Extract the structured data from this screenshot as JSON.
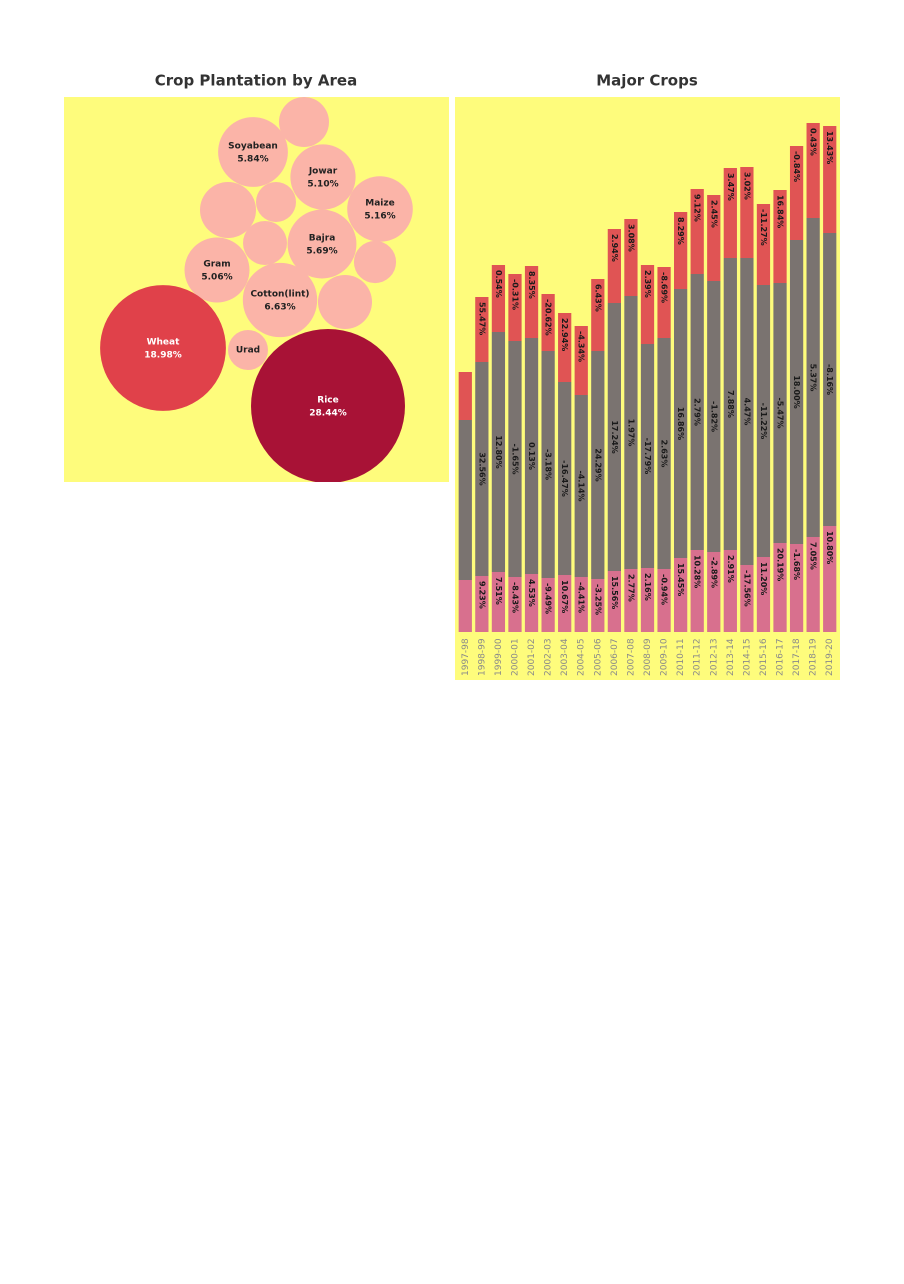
{
  "chart_data": [
    {
      "type": "bubble",
      "title": "Crop Plantation by Area",
      "categories": [
        "Soyabean",
        "Jowar",
        "Maize",
        "Bajra",
        "Gram",
        "Cotton(lint)",
        "Wheat",
        "Rice",
        "Urad",
        null,
        null,
        null,
        null,
        null,
        null
      ],
      "values": [
        5.84,
        5.1,
        5.16,
        5.69,
        5.06,
        6.63,
        18.98,
        28.44,
        1.92,
        3.0,
        3.76,
        1.92,
        2.32,
        3.5,
        2.13
      ],
      "value_labels": [
        "5.84%",
        "5.10%",
        "5.16%",
        "5.69%",
        "5.06%",
        "6.63%",
        "18.98%",
        "28.44%",
        null,
        null,
        null,
        null,
        null,
        null,
        null
      ],
      "colors": [
        "#fbb4a8",
        "#fbb4a8",
        "#fbb4a8",
        "#fbb4a8",
        "#fbb4a8",
        "#fbb4a8",
        "#e0414a",
        "#a81236",
        "#fbb4a8",
        "#fbb4a8",
        "#fbb4a8",
        "#fbb4a8",
        "#fbb4a8",
        "#fbb4a8",
        "#fbb4a8"
      ],
      "background": "#fefc7c"
    },
    {
      "type": "stacked-bar",
      "title": "Major Crops",
      "categories": [
        "1997-98",
        "1998-99",
        "1999-00",
        "2000-01",
        "2001-02",
        "2002-03",
        "2003-04",
        "2004-05",
        "2005-06",
        "2006-07",
        "2007-08",
        "2008-09",
        "2009-10",
        "2010-11",
        "2011-12",
        "2012-13",
        "2013-14",
        "2014-15",
        "2015-16",
        "2016-17",
        "2017-18",
        "2018-19",
        "2019-20"
      ],
      "series": [
        {
          "color": "#d8708e",
          "values": [
            52,
            56,
            60,
            55,
            58,
            54,
            57,
            55,
            53,
            61,
            63,
            64,
            63,
            74,
            82,
            80,
            82,
            67,
            75,
            89,
            88,
            95,
            106
          ],
          "labels": [
            null,
            "9.23%",
            "7.51%",
            "-8.43%",
            "4.53%",
            "-9.49%",
            "10.67%",
            "-4.41%",
            "-3.25%",
            "15.56%",
            "2.77%",
            "2.16%",
            "-0.94%",
            "15.45%",
            "10.28%",
            "-2.89%",
            "2.91%",
            "-17.56%",
            "11.20%",
            "20.19%",
            "-1.68%",
            "7.05%",
            "10.80%"
          ]
        },
        {
          "color": "#7a7370",
          "values": [
            160,
            214,
            240,
            236,
            236,
            227,
            193,
            182,
            228,
            268,
            273,
            224,
            231,
            269,
            276,
            271,
            292,
            307,
            272,
            260,
            304,
            319,
            293
          ],
          "labels": [
            null,
            "32.56%",
            "12.80%",
            "-1.65%",
            "0.13%",
            "-3.18%",
            "-16.47%",
            "-4.14%",
            "24.29%",
            "17.24%",
            "1.97%",
            "-17.79%",
            "2.63%",
            "16.86%",
            "2.79%",
            "-1.82%",
            "7.88%",
            "4.47%",
            "-11.22%",
            "-5.47%",
            "18.00%",
            "5.37%",
            "-8.16%"
          ]
        },
        {
          "color": "#e05454",
          "values": [
            48,
            65,
            67,
            67,
            72,
            57,
            69,
            69,
            72,
            74,
            77,
            79,
            71,
            77,
            85,
            86,
            90,
            91,
            81,
            93,
            94,
            95,
            107
          ],
          "labels": [
            null,
            "55.47%",
            "0.54%",
            "-0.31%",
            "8.35%",
            "-20.62%",
            "22.94%",
            "-4.34%",
            "6.43%",
            "2.94%",
            "3.08%",
            "2.39%",
            "-8.69%",
            "8.29%",
            "9.12%",
            "2.45%",
            "3.47%",
            "3.02%",
            "-11.27%",
            "16.84%",
            "-0.84%",
            "0.43%",
            "13.43%"
          ]
        }
      ],
      "background": "#fefc7c"
    }
  ]
}
